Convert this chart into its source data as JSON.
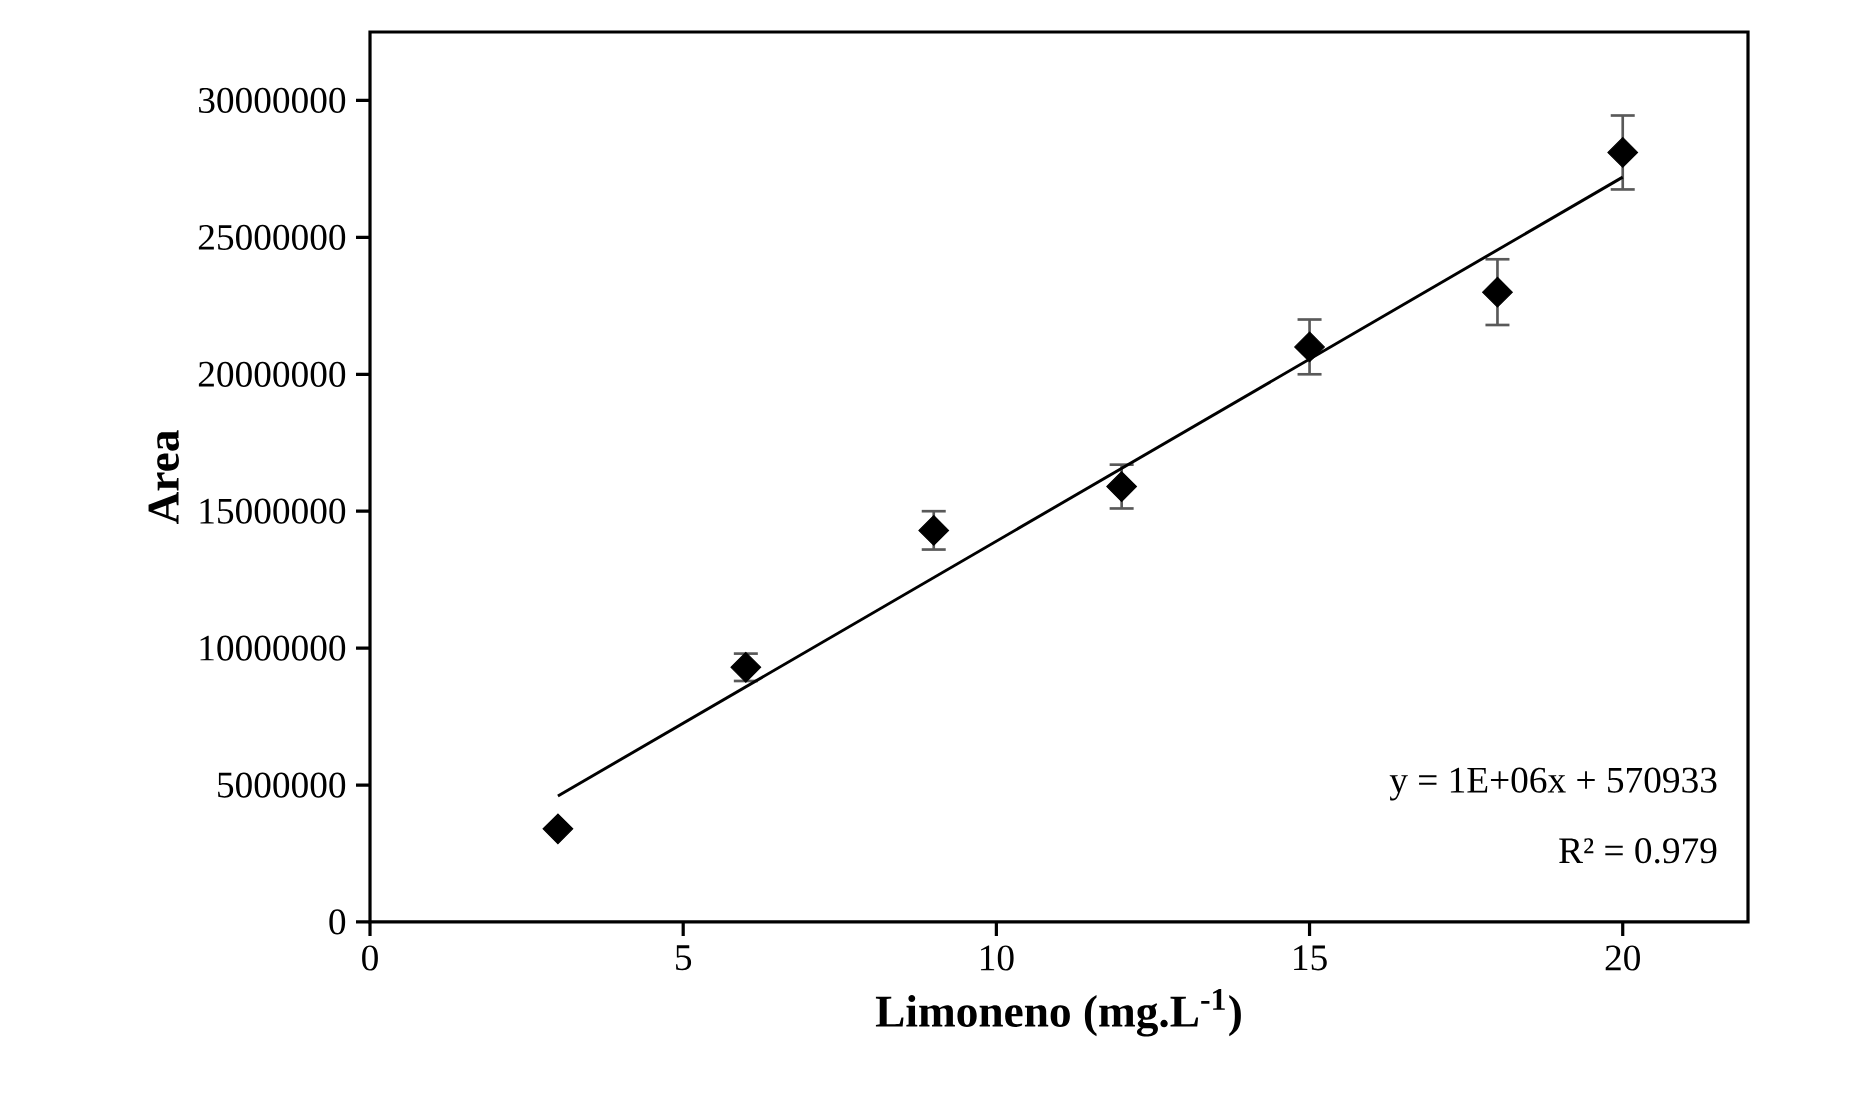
{
  "chart_data": {
    "type": "scatter",
    "xlabel": "Limoneno (mg.L$^{-1}$)",
    "ylabel": "Area",
    "xlim": [
      0,
      22
    ],
    "ylim": [
      0,
      32500000
    ],
    "xticks": [
      0,
      5,
      10,
      15,
      20
    ],
    "yticks": [
      0,
      5000000,
      10000000,
      15000000,
      20000000,
      25000000,
      30000000
    ],
    "series": [
      {
        "color": "#000000",
        "marker": "diamond",
        "x": [
          3,
          6,
          9,
          12,
          15,
          18,
          20
        ],
        "values": [
          3400000,
          9300000,
          14300000,
          15900000,
          21000000,
          23000000,
          28100000
        ],
        "errors": [
          null,
          500000,
          700000,
          800000,
          1000000,
          1200000,
          1350000
        ]
      },
      {
        "type": "line",
        "color": "#000000",
        "line_style": "solid",
        "x": [
          3,
          20
        ],
        "values": [
          4600000,
          27200000
        ]
      }
    ],
    "annotations": [
      "y = 1E+06x  + 570933",
      "R² = 0.979"
    ]
  }
}
